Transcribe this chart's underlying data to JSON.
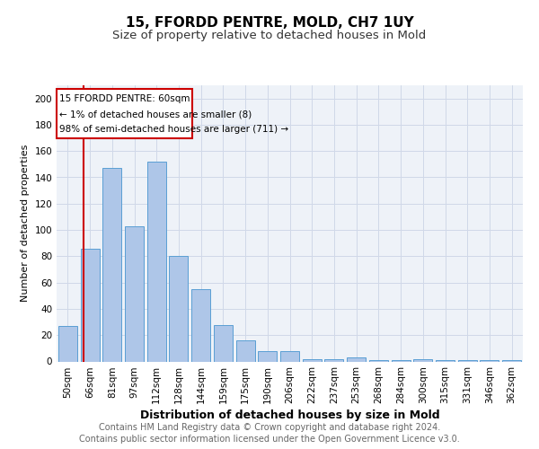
{
  "title1": "15, FFORDD PENTRE, MOLD, CH7 1UY",
  "title2": "Size of property relative to detached houses in Mold",
  "xlabel": "Distribution of detached houses by size in Mold",
  "ylabel": "Number of detached properties",
  "categories": [
    "50sqm",
    "66sqm",
    "81sqm",
    "97sqm",
    "112sqm",
    "128sqm",
    "144sqm",
    "159sqm",
    "175sqm",
    "190sqm",
    "206sqm",
    "222sqm",
    "237sqm",
    "253sqm",
    "268sqm",
    "284sqm",
    "300sqm",
    "315sqm",
    "331sqm",
    "346sqm",
    "362sqm"
  ],
  "values": [
    27,
    86,
    147,
    103,
    152,
    80,
    55,
    28,
    16,
    8,
    8,
    2,
    2,
    3,
    1,
    1,
    2,
    1,
    1,
    1,
    1
  ],
  "bar_color": "#aec6e8",
  "bar_edge_color": "#5a9fd4",
  "grid_color": "#d0d8e8",
  "bg_color": "#eef2f8",
  "annotation_box_color": "#cc0000",
  "annotation_line1": "15 FFORDD PENTRE: 60sqm",
  "annotation_line2": "← 1% of detached houses are smaller (8)",
  "annotation_line3": "98% of semi-detached houses are larger (711) →",
  "red_line_x": 0.72,
  "ylim": [
    0,
    210
  ],
  "yticks": [
    0,
    20,
    40,
    60,
    80,
    100,
    120,
    140,
    160,
    180,
    200
  ],
  "footer1": "Contains HM Land Registry data © Crown copyright and database right 2024.",
  "footer2": "Contains public sector information licensed under the Open Government Licence v3.0.",
  "title1_fontsize": 11,
  "title2_fontsize": 9.5,
  "tick_fontsize": 7.5,
  "ann_fontsize": 7.5,
  "label_fontsize": 9,
  "footer_fontsize": 7
}
